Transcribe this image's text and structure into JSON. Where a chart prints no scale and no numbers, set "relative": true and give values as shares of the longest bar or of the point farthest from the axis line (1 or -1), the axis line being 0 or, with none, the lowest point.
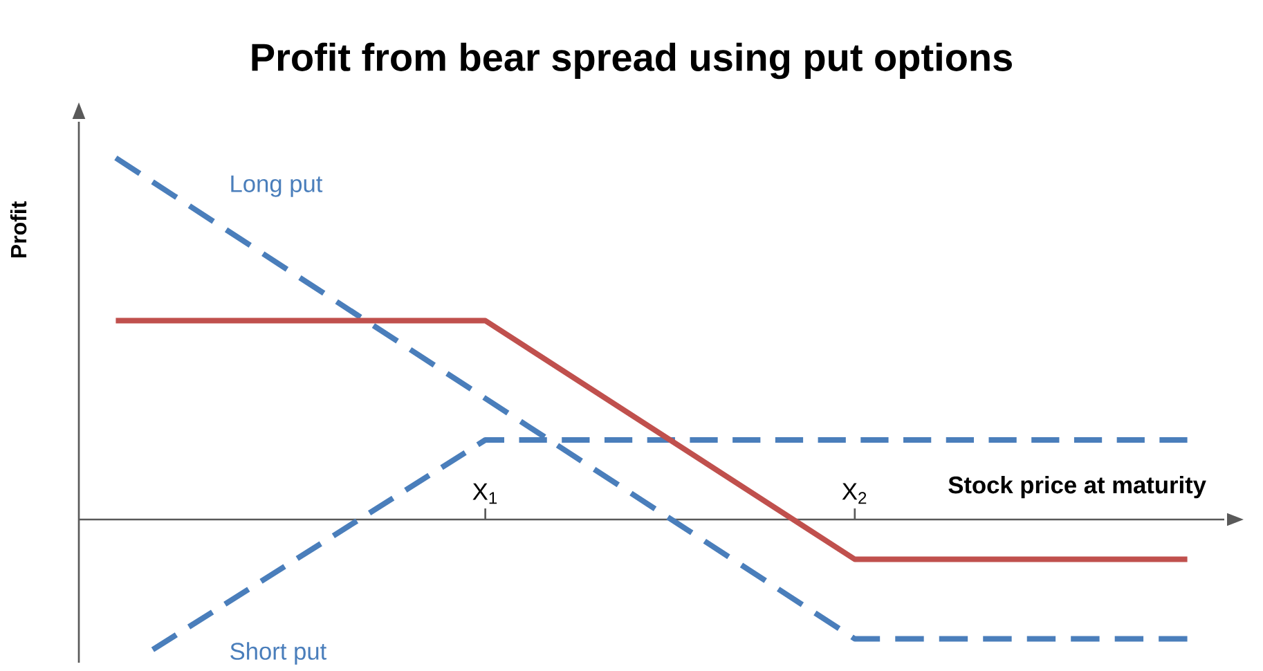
{
  "chart_data": {
    "type": "line",
    "title": "Profit from bear spread using put options",
    "xlabel": "Stock price at maturity",
    "ylabel": "Profit",
    "relative": true,
    "legend": false,
    "xlim": [
      -0.1,
      3
    ],
    "xticks": [
      {
        "value": 1,
        "label": "X$_{1}$"
      },
      {
        "value": 2,
        "label": "X$_{2}$"
      }
    ],
    "series": [
      {
        "name": "Long put",
        "color": "#4a7ebb",
        "line_style": "dashed",
        "x": [
          0,
          2,
          2.9
        ],
        "values": [
          1,
          -0.33,
          -0.33
        ]
      },
      {
        "name": "Short put",
        "color": "#4a7ebb",
        "line_style": "dashed",
        "x": [
          0.1,
          1,
          2.9
        ],
        "values": [
          -0.36,
          0.22,
          0.22
        ]
      },
      {
        "color": "#c0504d",
        "line_style": "solid",
        "x": [
          0,
          1,
          2,
          2.9
        ],
        "values": [
          0.55,
          0.55,
          -0.11,
          -0.11
        ]
      }
    ]
  }
}
